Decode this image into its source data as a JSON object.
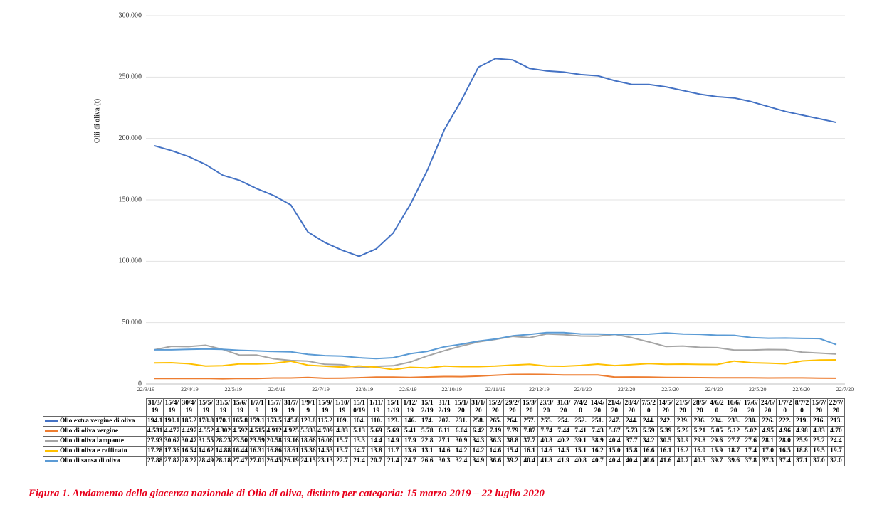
{
  "chart_data": {
    "type": "line",
    "y_axis_label": "Olii di oliva (t)",
    "caption": "Figura 1. Andamento della giacenza nazionale di Olio di oliva, distinto per categoria: 15 marzo 2019 – 22 luglio 2020",
    "ylim": [
      0,
      300000
    ],
    "yticks": [
      {
        "value": 0,
        "label": "0"
      },
      {
        "value": 50000,
        "label": "50.000"
      },
      {
        "value": 100000,
        "label": "100.000"
      },
      {
        "value": 150000,
        "label": "150.000"
      },
      {
        "value": 200000,
        "label": "200.000"
      },
      {
        "value": 250000,
        "label": "250.000"
      },
      {
        "value": 300000,
        "label": "300.000"
      }
    ],
    "grid": true,
    "x_axis_labels": [
      "22/3/19",
      "22/4/19",
      "22/5/19",
      "22/6/19",
      "22/7/19",
      "22/8/19",
      "22/9/19",
      "22/10/19",
      "22/11/19",
      "22/12/19",
      "22/1/20",
      "22/2/20",
      "22/3/20",
      "22/4/20",
      "22/5/20",
      "22/6/20",
      "22/7/20"
    ],
    "categories": [
      "31/3/19",
      "15/4/19",
      "30/4/19",
      "15/5/19",
      "31/5/19",
      "15/6/19",
      "1/7/19",
      "15/7/19",
      "31/7/19",
      "1/9/19",
      "15/9/19",
      "1/10/19",
      "15/10/19",
      "1/11/19",
      "15/11/19",
      "1/12/19",
      "15/12/19",
      "31/12/19",
      "15/1/20",
      "31/1/20",
      "15/2/20",
      "29/2/20",
      "15/3/20",
      "23/3/20",
      "31/3/20",
      "7/4/20",
      "14/4/20",
      "21/4/20",
      "28/4/20",
      "7/5/20",
      "14/5/20",
      "21/5/20",
      "28/5/20",
      "4/6/20",
      "10/6/20",
      "17/6/20",
      "24/6/20",
      "1/7/20",
      "8/7/20",
      "15/7/20",
      "22/7/20"
    ],
    "series": [
      {
        "name": "Olio extra vergine di oliva",
        "color": "#4472c4",
        "values": [
          194100,
          190100,
          185200,
          178800,
          170100,
          165800,
          159100,
          153500,
          145800,
          123800,
          115200,
          109000,
          104000,
          110000,
          123000,
          146000,
          174000,
          207000,
          231000,
          258000,
          265000,
          264000,
          257000,
          255000,
          254000,
          252000,
          251000,
          247000,
          244000,
          244000,
          242000,
          239000,
          236000,
          234000,
          233000,
          230000,
          226000,
          222000,
          219000,
          216000,
          213000
        ],
        "value_labels": [
          "194.1",
          "190.1",
          "185.2",
          "178.8",
          "170.1",
          "165.8",
          "159.1",
          "153.5",
          "145.8",
          "123.8",
          "115.2",
          "109.",
          "104.",
          "110.",
          "123.",
          "146.",
          "174.",
          "207.",
          "231.",
          "258.",
          "265.",
          "264.",
          "257.",
          "255.",
          "254.",
          "252.",
          "251.",
          "247.",
          "244.",
          "244.",
          "242.",
          "239.",
          "236.",
          "234.",
          "233.",
          "230.",
          "226.",
          "222.",
          "219.",
          "216.",
          "213."
        ]
      },
      {
        "name": "Olio di oliva vergine",
        "color": "#ed7d31",
        "values": [
          4531,
          4477,
          4497,
          4552,
          4302,
          4592,
          4515,
          4912,
          4925,
          5333,
          4709,
          4830,
          5130,
          5690,
          5690,
          5410,
          5780,
          6110,
          6040,
          6420,
          7190,
          7790,
          7870,
          7740,
          7440,
          7410,
          7430,
          5670,
          5730,
          5590,
          5390,
          5260,
          5210,
          5050,
          5120,
          5020,
          4950,
          4960,
          4980,
          4830,
          4700
        ],
        "value_labels": [
          "4.531",
          "4.477",
          "4.497",
          "4.552",
          "4.302",
          "4.592",
          "4.515",
          "4.912",
          "4.925",
          "5.333",
          "4.709",
          "4.83",
          "5.13",
          "5.69",
          "5.69",
          "5.41",
          "5.78",
          "6.11",
          "6.04",
          "6.42",
          "7.19",
          "7.79",
          "7.87",
          "7.74",
          "7.44",
          "7.41",
          "7.43",
          "5.67",
          "5.73",
          "5.59",
          "5.39",
          "5.26",
          "5.21",
          "5.05",
          "5.12",
          "5.02",
          "4.95",
          "4.96",
          "4.98",
          "4.83",
          "4.70"
        ]
      },
      {
        "name": "Olio di oliva lampante",
        "color": "#a5a5a5",
        "values": [
          27930,
          30670,
          30470,
          31550,
          28230,
          23500,
          23590,
          20580,
          19160,
          18660,
          16060,
          15700,
          13300,
          14400,
          14900,
          17900,
          22800,
          27100,
          30900,
          34300,
          36300,
          38800,
          37700,
          40800,
          40200,
          39100,
          38900,
          40400,
          37700,
          34200,
          30500,
          30900,
          29800,
          29600,
          27700,
          27600,
          28100,
          28000,
          25900,
          25200,
          24400
        ],
        "value_labels": [
          "27.93",
          "30.67",
          "30.47",
          "31.55",
          "28.23",
          "23.50",
          "23.59",
          "20.58",
          "19.16",
          "18.66",
          "16.06",
          "15.7",
          "13.3",
          "14.4",
          "14.9",
          "17.9",
          "22.8",
          "27.1",
          "30.9",
          "34.3",
          "36.3",
          "38.8",
          "37.7",
          "40.8",
          "40.2",
          "39.1",
          "38.9",
          "40.4",
          "37.7",
          "34.2",
          "30.5",
          "30.9",
          "29.8",
          "29.6",
          "27.7",
          "27.6",
          "28.1",
          "28.0",
          "25.9",
          "25.2",
          "24.4"
        ]
      },
      {
        "name": "Olio di oliva e raffinato",
        "color": "#ffc000",
        "values": [
          17280,
          17360,
          16540,
          14620,
          14880,
          16440,
          16310,
          16860,
          18610,
          15360,
          14530,
          13700,
          14700,
          13800,
          11700,
          13600,
          13100,
          14600,
          14200,
          14200,
          14600,
          15400,
          16100,
          14600,
          14500,
          15100,
          16200,
          15000,
          15800,
          16600,
          16100,
          16200,
          16000,
          15900,
          18700,
          17400,
          17000,
          16500,
          18800,
          19500,
          19700
        ],
        "value_labels": [
          "17.28",
          "17.36",
          "16.54",
          "14.62",
          "14.88",
          "16.44",
          "16.31",
          "16.86",
          "18.61",
          "15.36",
          "14.53",
          "13.7",
          "14.7",
          "13.8",
          "11.7",
          "13.6",
          "13.1",
          "14.6",
          "14.2",
          "14.2",
          "14.6",
          "15.4",
          "16.1",
          "14.6",
          "14.5",
          "15.1",
          "16.2",
          "15.0",
          "15.8",
          "16.6",
          "16.1",
          "16.2",
          "16.0",
          "15.9",
          "18.7",
          "17.4",
          "17.0",
          "16.5",
          "18.8",
          "19.5",
          "19.7"
        ]
      },
      {
        "name": "Olio di sansa di oliva",
        "color": "#5b9bd5",
        "values": [
          27880,
          27870,
          28270,
          28490,
          28180,
          27470,
          27010,
          26450,
          26190,
          24150,
          23130,
          22700,
          21400,
          20700,
          21400,
          24700,
          26600,
          30300,
          32400,
          34900,
          36600,
          39200,
          40400,
          41800,
          41900,
          40800,
          40700,
          40400,
          40400,
          40600,
          41600,
          40700,
          40500,
          39700,
          39600,
          37800,
          37300,
          37400,
          37100,
          37000,
          32000
        ],
        "value_labels": [
          "27.88",
          "27.87",
          "28.27",
          "28.49",
          "28.18",
          "27.47",
          "27.01",
          "26.45",
          "26.19",
          "24.15",
          "23.13",
          "22.7",
          "21.4",
          "20.7",
          "21.4",
          "24.7",
          "26.6",
          "30.3",
          "32.4",
          "34.9",
          "36.6",
          "39.2",
          "40.4",
          "41.8",
          "41.9",
          "40.8",
          "40.7",
          "40.4",
          "40.4",
          "40.6",
          "41.6",
          "40.7",
          "40.5",
          "39.7",
          "39.6",
          "37.8",
          "37.3",
          "37.4",
          "37.1",
          "37.0",
          "32.0"
        ]
      }
    ]
  }
}
